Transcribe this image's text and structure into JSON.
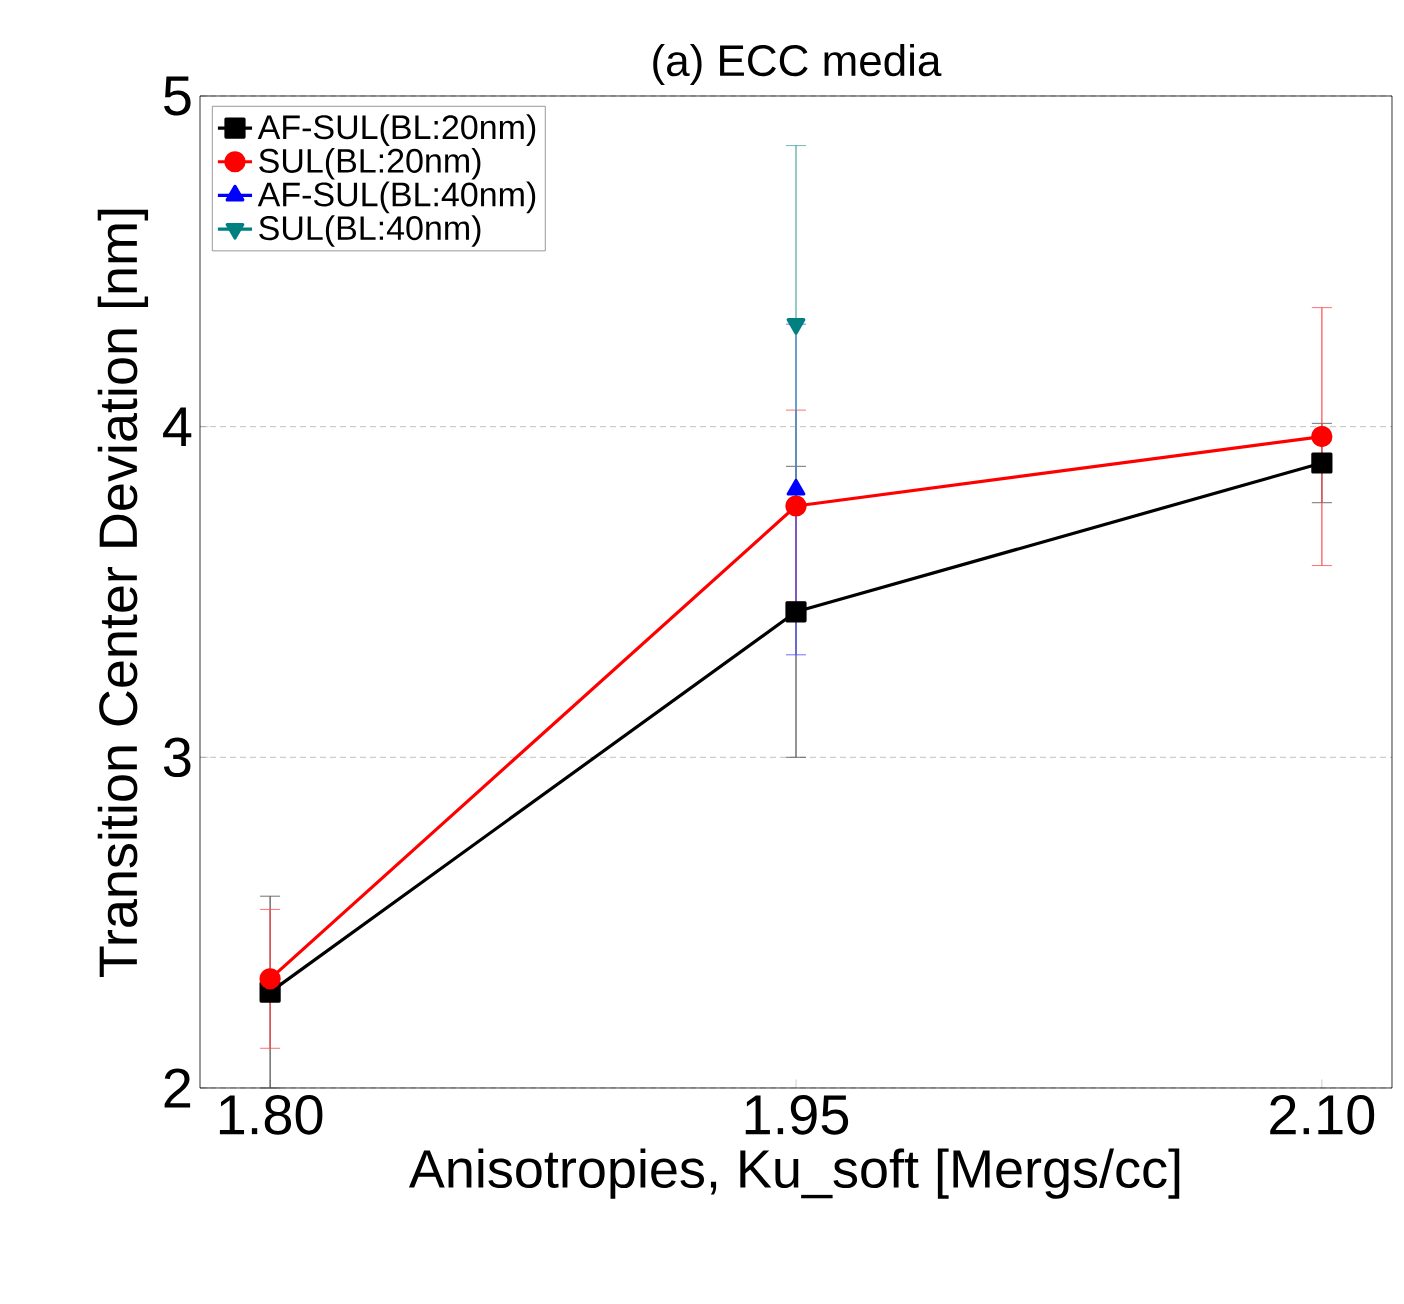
{
  "chart_data": {
    "type": "line",
    "title": "(a) ECC media",
    "xlabel": "Anisotropies, Ku_soft [Mergs/cc]",
    "ylabel": "Transition Center Deviation [nm]",
    "xlim": [
      1.78,
      2.12
    ],
    "ylim": [
      2,
      5
    ],
    "xticks": [
      {
        "value": 1.8,
        "label": "1.80"
      },
      {
        "value": 1.95,
        "label": "1.95"
      },
      {
        "value": 2.1,
        "label": "2.10"
      }
    ],
    "yticks": [
      2,
      3,
      4,
      5
    ],
    "grid": "y",
    "legend": "top left",
    "series": [
      {
        "name": "AF-SUL(BL:20nm)",
        "color": "#000000",
        "marker": "square",
        "x": [
          1.8,
          1.95,
          2.1
        ],
        "values": [
          2.29,
          3.44,
          3.89
        ],
        "errors": [
          0.29,
          0.44,
          0.12
        ]
      },
      {
        "name": "SUL(BL:20nm)",
        "color": "#ff0000",
        "marker": "circle",
        "x": [
          1.8,
          1.95,
          2.1
        ],
        "values": [
          2.33,
          3.76,
          3.97
        ],
        "errors": [
          0.21,
          0.29,
          0.39
        ]
      },
      {
        "name": "AF-SUL(BL:40nm)",
        "color": "#0000ff",
        "marker": "triangle",
        "x": [
          1.95
        ],
        "values": [
          3.81
        ],
        "errors": [
          0.5
        ]
      },
      {
        "name": "SUL(BL:40nm)",
        "color": "#008080",
        "marker": "triangle down",
        "x": [
          1.95
        ],
        "values": [
          4.31
        ],
        "errors": [
          0.54
        ]
      }
    ]
  }
}
